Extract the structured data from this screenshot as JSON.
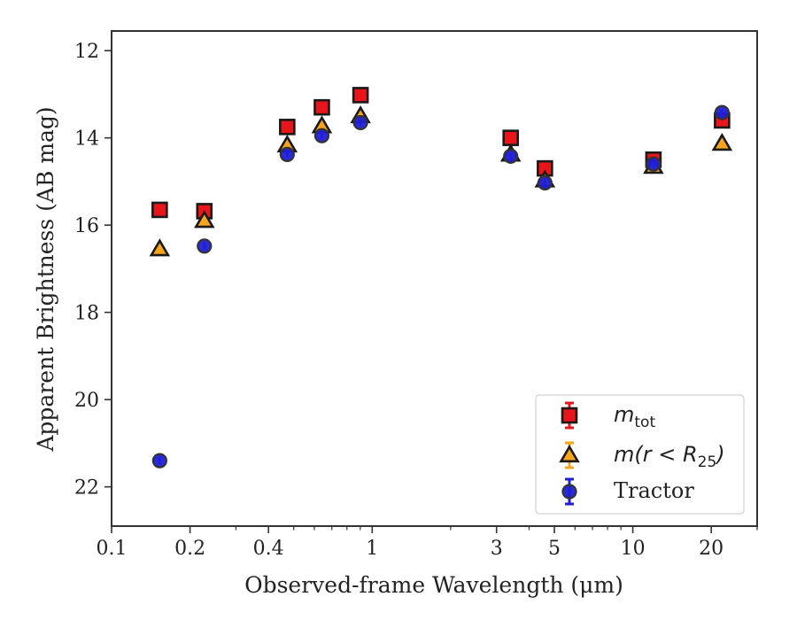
{
  "chart_data": {
    "type": "scatter",
    "title": "",
    "xlabel": "Observed-frame Wavelength (μm)",
    "ylabel": "Apparent Brightness (AB mag)",
    "xscale": "log",
    "xlim": [
      0.1,
      30
    ],
    "ylim": [
      22.9,
      11.55
    ],
    "y_inverted": true,
    "x_ticks": [
      0.1,
      0.2,
      0.4,
      1,
      3,
      5,
      10,
      20
    ],
    "x_tick_labels": [
      "0.1",
      "0.2",
      "0.4",
      "1",
      "3",
      "5",
      "10",
      "20"
    ],
    "y_ticks": [
      12,
      14,
      16,
      18,
      20,
      22
    ],
    "y_tick_labels": [
      "12",
      "14",
      "16",
      "18",
      "20",
      "22"
    ],
    "legend_position": "lower-right",
    "series": [
      {
        "name": "m_tot",
        "marker": "square",
        "color": "#e8151b",
        "edge_color": "#1a1a1a",
        "points": [
          {
            "x": 0.153,
            "y": 15.65
          },
          {
            "x": 0.227,
            "y": 15.68
          },
          {
            "x": 0.472,
            "y": 13.75
          },
          {
            "x": 0.641,
            "y": 13.3
          },
          {
            "x": 0.902,
            "y": 13.02
          },
          {
            "x": 3.4,
            "y": 14.0
          },
          {
            "x": 4.6,
            "y": 14.7
          },
          {
            "x": 12.0,
            "y": 14.5
          },
          {
            "x": 22.0,
            "y": 13.6
          }
        ]
      },
      {
        "name": "m(r < R25)",
        "marker": "triangle",
        "color": "#f5a51c",
        "edge_color": "#1a1a1a",
        "points": [
          {
            "x": 0.153,
            "y": 16.55
          },
          {
            "x": 0.227,
            "y": 15.9
          },
          {
            "x": 0.472,
            "y": 14.17
          },
          {
            "x": 0.641,
            "y": 13.73
          },
          {
            "x": 0.902,
            "y": 13.5
          },
          {
            "x": 3.4,
            "y": 14.38
          },
          {
            "x": 4.6,
            "y": 14.97
          },
          {
            "x": 12.0,
            "y": 14.66
          },
          {
            "x": 22.0,
            "y": 14.13
          }
        ]
      },
      {
        "name": "Tractor",
        "marker": "circle",
        "color": "#1f1fd8",
        "edge_color": "#333333",
        "points": [
          {
            "x": 0.153,
            "y": 21.4
          },
          {
            "x": 0.227,
            "y": 16.48
          },
          {
            "x": 0.472,
            "y": 14.38
          },
          {
            "x": 0.641,
            "y": 13.95
          },
          {
            "x": 0.902,
            "y": 13.65
          },
          {
            "x": 3.4,
            "y": 14.42
          },
          {
            "x": 4.6,
            "y": 15.03
          },
          {
            "x": 12.0,
            "y": 14.6
          },
          {
            "x": 22.0,
            "y": 13.42
          }
        ]
      }
    ],
    "legend": [
      {
        "label_main": "m",
        "label_sub": "tot",
        "label_tail": ""
      },
      {
        "label_main": "m(r < R",
        "label_sub": "25",
        "label_tail": ")"
      },
      {
        "label_main": "Tractor",
        "label_sub": "",
        "label_tail": ""
      }
    ]
  }
}
